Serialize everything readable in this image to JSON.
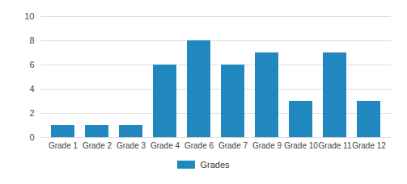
{
  "chart_data": {
    "type": "bar",
    "categories": [
      "Grade 1",
      "Grade 2",
      "Grade 3",
      "Grade 4",
      "Grade 6",
      "Grade 7",
      "Grade 9",
      "Grade 10",
      "Grade 11",
      "Grade 12"
    ],
    "series": [
      {
        "name": "Grades",
        "color": "#2187bf",
        "values": [
          1,
          1,
          1,
          6,
          8,
          6,
          7,
          3,
          7,
          3
        ]
      }
    ],
    "ylim": [
      0,
      10
    ],
    "yticks": [
      0,
      2,
      4,
      6,
      8,
      10
    ],
    "grid": true,
    "legend": "bottom"
  }
}
